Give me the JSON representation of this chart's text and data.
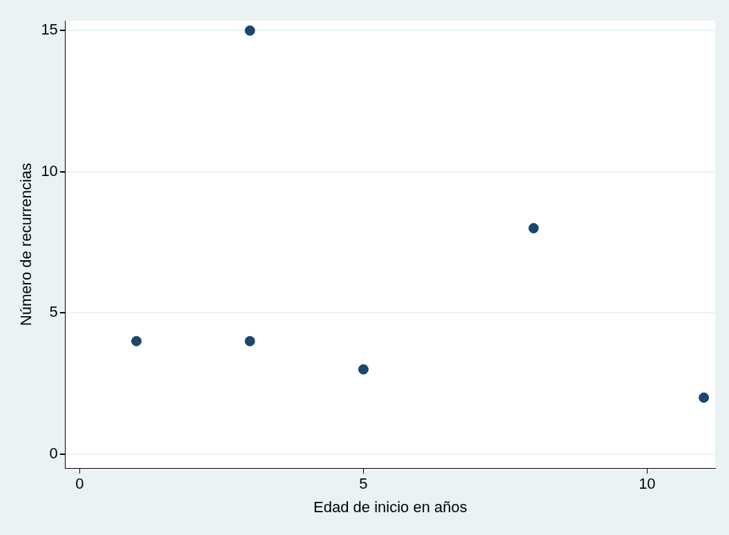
{
  "chart_data": {
    "type": "scatter",
    "xlabel": "Edad de inicio en años",
    "ylabel": "Número de recurrencias",
    "x": [
      1,
      3,
      3,
      5,
      8,
      11
    ],
    "values": [
      4,
      15,
      4,
      3,
      8,
      2
    ],
    "color": "#1a476f",
    "marker": "circle",
    "xlim": [
      -0.25,
      11.2
    ],
    "xticks": [
      0,
      5,
      10
    ],
    "ylim": [
      -0.5,
      15.35
    ],
    "yticks": [
      0,
      5,
      10,
      15
    ],
    "grid": "y",
    "legend": false
  }
}
